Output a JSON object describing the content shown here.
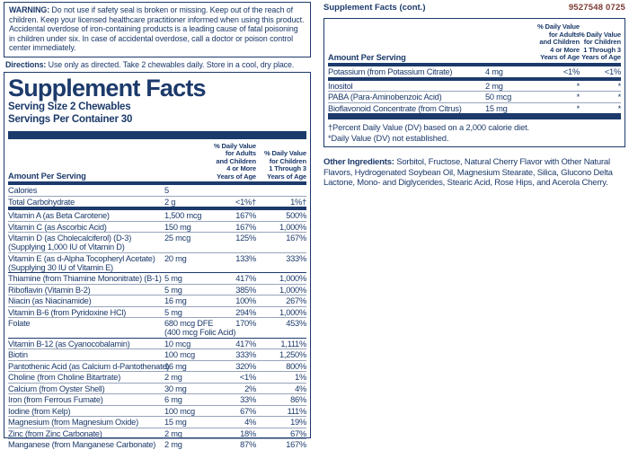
{
  "colors": {
    "navy": "#1c3a6b",
    "hairline": "#97a4bb",
    "code_red": "#7d3a33",
    "background": "#ffffff"
  },
  "warning": {
    "label": "WARNING:",
    "text": " Do not use if safety seal is broken or missing. Keep out of the reach of children. Keep your licensed healthcare practitioner informed when using this product. Accidental overdose of iron-containing products is a leading cause of fatal poisoning in children under six. In case of accidental overdose, call a doctor or poison control center immediately."
  },
  "directions": {
    "label": "Directions:",
    "text": " Use only as directed. Take 2 chewables daily. Store in a cool, dry place."
  },
  "table_headers": {
    "amount": "Amount Per Serving",
    "dv_adults": "% Daily Value\nfor Adults\nand Children\n4 or More\nYears of Age",
    "dv_children": "% Daily Value\nfor Children\n1 Through 3\nYears of Age"
  },
  "panel": {
    "title": "Supplement Facts",
    "serving_size": "Serving Size 2 Chewables",
    "servings_per_container": "Servings Per Container 30",
    "rows": [
      {
        "name": "Calories",
        "amt": "5",
        "dv1": "",
        "dv2": ""
      },
      {
        "name": "Total Carbohydrate",
        "amt": "2 g",
        "dv1": "<1%†",
        "dv2": "1%†",
        "bar": "bar4"
      },
      {
        "name": "Vitamin A (as Beta Carotene)",
        "amt": "1,500 mcg",
        "dv1": "167%",
        "dv2": "500%"
      },
      {
        "name": "Vitamin C (as Ascorbic Acid)",
        "amt": "150 mg",
        "dv1": "167%",
        "dv2": "1,000%"
      },
      {
        "name": "Vitamin D (as Cholecalciferol) (D-3)",
        "name2": "(Supplying 1,000 IU of Vitamin D)",
        "amt": "25 mcg",
        "dv1": "125%",
        "dv2": "167%"
      },
      {
        "name": "Vitamin E (as d-Alpha Tocopheryl Acetate)",
        "name2": "(Supplying 30 IU of Vitamin E)",
        "amt": "20 mg",
        "dv1": "133%",
        "dv2": "333%",
        "sep": "med"
      },
      {
        "name": "Thiamine (from Thiamine Mononitrate) (B-1)",
        "amt": "5 mg",
        "dv1": "417%",
        "dv2": "1,000%"
      },
      {
        "name": "Riboflavin (Vitamin B-2)",
        "amt": "5 mg",
        "dv1": "385%",
        "dv2": "1,000%"
      },
      {
        "name": "Niacin (as Niacinamide)",
        "amt": "16 mg",
        "dv1": "100%",
        "dv2": "267%"
      },
      {
        "name": "Vitamin B-6 (from Pyridoxine HCl)",
        "amt": "5 mg",
        "dv1": "294%",
        "dv2": "1,000%"
      },
      {
        "name": "Folate",
        "amt": "680 mcg DFE",
        "amt2": "(400 mcg Folic Acid)",
        "dv1": "170%",
        "dv2": "453%",
        "sep": "med"
      },
      {
        "name": "Vitamin B-12 (as Cyanocobalamin)",
        "amt": "10 mcg",
        "dv1": "417%",
        "dv2": "1,111%"
      },
      {
        "name": "Biotin",
        "amt": "100 mcg",
        "dv1": "333%",
        "dv2": "1,250%"
      },
      {
        "name": "Pantothenic Acid (as Calcium d-Pantothenate)",
        "amt": "16 mg",
        "dv1": "320%",
        "dv2": "800%"
      },
      {
        "name": "Choline (from Choline Bitartrate)",
        "amt": "2 mg",
        "dv1": "<1%",
        "dv2": "1%"
      },
      {
        "name": "Calcium (from Oyster Shell)",
        "amt": "30 mg",
        "dv1": "2%",
        "dv2": "4%"
      },
      {
        "name": "Iron (from Ferrous Fumate)",
        "amt": "6 mg",
        "dv1": "33%",
        "dv2": "86%"
      },
      {
        "name": "Iodine (from Kelp)",
        "amt": "100 mcg",
        "dv1": "67%",
        "dv2": "111%"
      },
      {
        "name": "Magnesium (from Magnesium Oxide)",
        "amt": "15 mg",
        "dv1": "4%",
        "dv2": "19%"
      },
      {
        "name": "Zinc (from Zinc Carbonate)",
        "amt": "2 mg",
        "dv1": "18%",
        "dv2": "67%"
      },
      {
        "name": "Manganese (from Manganese Carbonate)",
        "amt": "2 mg",
        "dv1": "87%",
        "dv2": "167%"
      }
    ]
  },
  "cont": {
    "header": "Supplement Facts (cont.)",
    "code": "9527548  0725",
    "rows": [
      {
        "name": "Potassium (from Potassium Citrate)",
        "amt": "4 mg",
        "dv1": "<1%",
        "dv2": "<1%",
        "bar": "bar4"
      },
      {
        "name": "Inositol",
        "amt": "2 mg",
        "dv1": "*",
        "dv2": "*"
      },
      {
        "name": "PABA (Para-Aminobenzoic Acid)",
        "amt": "50 mcg",
        "dv1": "*",
        "dv2": "*"
      },
      {
        "name": "Bioflavonoid Concentrate (from Citrus)",
        "amt": "15 mg",
        "dv1": "*",
        "dv2": "*",
        "bar": "bar7"
      }
    ],
    "footnote_dagger": "†Percent Daily Value (DV) based on a 2,000 calorie diet.",
    "footnote_star": "*Daily Value (DV) not established."
  },
  "other_ingredients": {
    "label": "Other Ingredients:",
    "text": " Sorbitol, Fructose, Natural Cherry Flavor with Other Natural Flavors, Hydrogenated Soybean Oil, Magnesium Stearate, Silica, Glucono Delta Lactone, Mono- and Diglycerides, Stearic Acid, Rose Hips, and Acerola Cherry."
  }
}
